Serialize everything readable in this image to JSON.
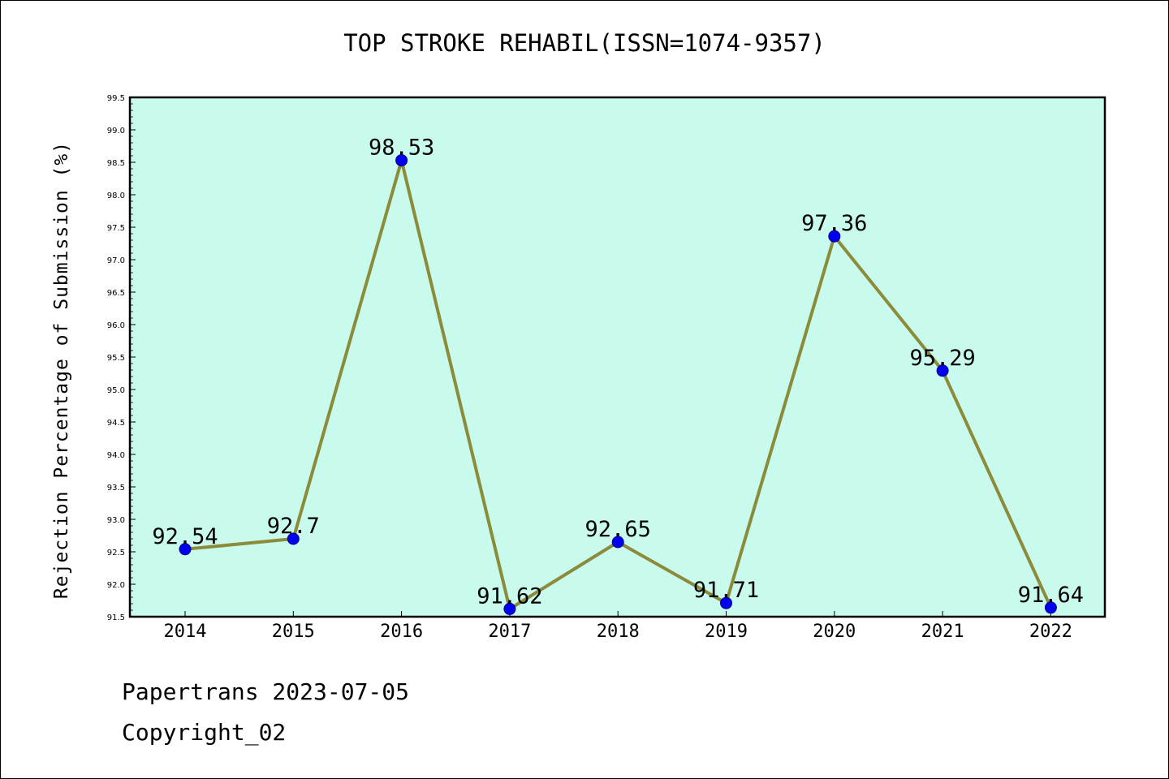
{
  "title": "TOP STROKE REHABIL(ISSN=1074-9357)",
  "footer": {
    "line1": "Papertrans 2023-07-05",
    "line2": "Copyright_02"
  },
  "colors": {
    "plot_background": "#c8fbee",
    "line": "#8b8b3a",
    "marker": "#0000ee"
  },
  "chart_data": {
    "type": "line",
    "title": "TOP STROKE REHABIL(ISSN=1074-9357)",
    "xlabel": "",
    "ylabel": "Rejection Percentage of Submission (%)",
    "categories": [
      "2014",
      "2015",
      "2016",
      "2017",
      "2018",
      "2019",
      "2020",
      "2021",
      "2022"
    ],
    "values": [
      92.54,
      92.7,
      98.53,
      91.62,
      92.65,
      91.71,
      97.36,
      95.29,
      91.64
    ],
    "data_labels": [
      "92.54",
      "92.7",
      "98.53",
      "91.62",
      "92.65",
      "91.71",
      "97.36",
      "95.29",
      "91.64"
    ],
    "ylim": [
      91.5,
      99.5
    ],
    "yticks": [
      "91.5",
      "92.0",
      "92.5",
      "93.0",
      "93.5",
      "94.0",
      "94.5",
      "95.0",
      "95.5",
      "96.0",
      "96.5",
      "97.0",
      "97.5",
      "98.0",
      "98.5",
      "99.0",
      "99.5"
    ],
    "grid": false,
    "legend": "none"
  }
}
